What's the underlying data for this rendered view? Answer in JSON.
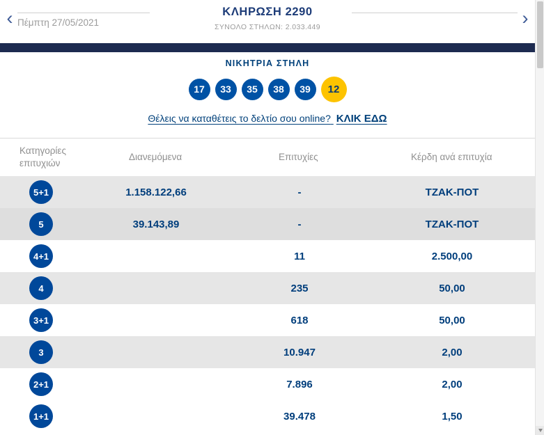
{
  "icons": {
    "prev": "‹",
    "next": "›"
  },
  "header": {
    "date": "Πέμπτη 27/05/2021",
    "title": "ΚΛΗΡΩΣΗ 2290",
    "total_columns": "ΣΥΝΟΛΟ ΣΤΗΛΩΝ: 2.033.449"
  },
  "winning": {
    "title": "ΝΙΚΗΤΡΙΑ ΣΤΗΛΗ",
    "numbers": [
      "17",
      "33",
      "35",
      "38",
      "39"
    ],
    "joker": "12"
  },
  "cta": {
    "text": "Θέλεις να καταθέτεις το δελτίο σου online?",
    "link": "ΚΛΙΚ ΕΔΩ"
  },
  "table": {
    "headers": {
      "category": "Κατηγορίες επιτυχιών",
      "distributed": "Διανεμόμενα",
      "winners": "Επιτυχίες",
      "prize": "Κέρδη ανά επιτυχία"
    },
    "rows": [
      {
        "category": "5+1",
        "distributed": "1.158.122,66",
        "winners": "-",
        "prize": "ΤΖΑΚ-ΠΟΤ"
      },
      {
        "category": "5",
        "distributed": "39.143,89",
        "winners": "-",
        "prize": "ΤΖΑΚ-ΠΟΤ"
      },
      {
        "category": "4+1",
        "distributed": "",
        "winners": "11",
        "prize": "2.500,00"
      },
      {
        "category": "4",
        "distributed": "",
        "winners": "235",
        "prize": "50,00"
      },
      {
        "category": "3+1",
        "distributed": "",
        "winners": "618",
        "prize": "50,00"
      },
      {
        "category": "3",
        "distributed": "",
        "winners": "10.947",
        "prize": "2,00"
      },
      {
        "category": "2+1",
        "distributed": "",
        "winners": "7.896",
        "prize": "2,00"
      },
      {
        "category": "1+1",
        "distributed": "",
        "winners": "39.478",
        "prize": "1,50"
      }
    ]
  },
  "colors": {
    "navy_text": "#003e7c",
    "circle_blue": "#0052a5",
    "joker_yellow": "#fdc300",
    "dark_bar": "#1d2b50",
    "row_shade": "#e6e6e6"
  }
}
